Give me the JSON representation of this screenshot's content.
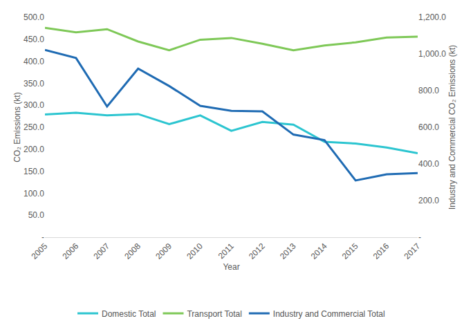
{
  "chart_data": {
    "type": "line",
    "x_label": "Year",
    "y_label": "CO₂ Emissions (kt)",
    "y2_label": "Industry and Commercial CO₂ Emissions (kt)",
    "categories": [
      "2005",
      "2006",
      "2007",
      "2008",
      "2009",
      "2010",
      "2011",
      "2012",
      "2013",
      "2014",
      "2015",
      "2016",
      "2017"
    ],
    "series": [
      {
        "name": "Domestic Total",
        "color": "#2cc5d0",
        "values": [
          279,
          283,
          277,
          280,
          257,
          277,
          242,
          262,
          256,
          217,
          213,
          204,
          191
        ]
      },
      {
        "name": "Transport Total",
        "color": "#7ec857",
        "values": [
          476,
          466,
          473,
          445,
          425,
          449,
          453,
          440,
          425,
          436,
          443,
          454,
          456
        ]
      },
      {
        "name": "Industry and Commercial Total",
        "color": "#1f6bb3",
        "axis": "y2",
        "values": [
          1022,
          978,
          713,
          920,
          825,
          717,
          690,
          687,
          560,
          530,
          310,
          343,
          350
        ]
      }
    ],
    "ylim": [
      0,
      500
    ],
    "yticks": [
      {
        "value": 0,
        "label": "-"
      },
      {
        "value": 50,
        "label": "50.0"
      },
      {
        "value": 100,
        "label": "100.0"
      },
      {
        "value": 150,
        "label": "150.0"
      },
      {
        "value": 200,
        "label": "200.0"
      },
      {
        "value": 250,
        "label": "250.0"
      },
      {
        "value": 300,
        "label": "300.0"
      },
      {
        "value": 350,
        "label": "350.0"
      },
      {
        "value": 400,
        "label": "400.0"
      },
      {
        "value": 450,
        "label": "450.0"
      },
      {
        "value": 500,
        "label": "500.0"
      }
    ],
    "y2lim": [
      0,
      1200
    ],
    "y2ticks": [
      {
        "value": 0,
        "label": "-"
      },
      {
        "value": 200,
        "label": "200.0"
      },
      {
        "value": 400,
        "label": "400.0"
      },
      {
        "value": 600,
        "label": "600.0"
      },
      {
        "value": 800,
        "label": "800.0"
      },
      {
        "value": 1000,
        "label": "1,000.0"
      },
      {
        "value": 1200,
        "label": "1,200.0"
      }
    ],
    "grid": false,
    "legend": "bottom"
  }
}
